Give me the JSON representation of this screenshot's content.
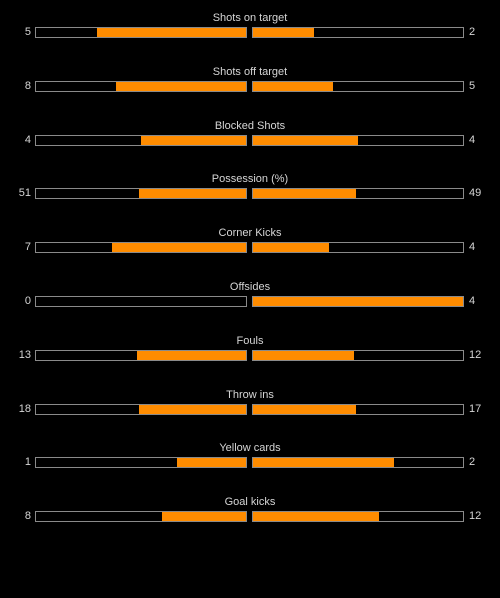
{
  "colors": {
    "background": "#000000",
    "text": "#d6d6d6",
    "bar_border": "#8a8a8a",
    "bar_fill": "#ff8c00"
  },
  "stats": [
    {
      "label": "Shots on target",
      "left": "5",
      "right": "2",
      "left_fill": 0.71,
      "right_fill": 0.29
    },
    {
      "label": "Shots off target",
      "left": "8",
      "right": "5",
      "left_fill": 0.62,
      "right_fill": 0.38
    },
    {
      "label": "Blocked Shots",
      "left": "4",
      "right": "4",
      "left_fill": 0.5,
      "right_fill": 0.5
    },
    {
      "label": "Possession (%)",
      "left": "51",
      "right": "49",
      "left_fill": 0.51,
      "right_fill": 0.49
    },
    {
      "label": "Corner Kicks",
      "left": "7",
      "right": "4",
      "left_fill": 0.64,
      "right_fill": 0.36
    },
    {
      "label": "Offsides",
      "left": "0",
      "right": "4",
      "left_fill": 0.0,
      "right_fill": 1.0
    },
    {
      "label": "Fouls",
      "left": "13",
      "right": "12",
      "left_fill": 0.52,
      "right_fill": 0.48
    },
    {
      "label": "Throw ins",
      "left": "18",
      "right": "17",
      "left_fill": 0.51,
      "right_fill": 0.49
    },
    {
      "label": "Yellow cards",
      "left": "1",
      "right": "2",
      "left_fill": 0.33,
      "right_fill": 0.67
    },
    {
      "label": "Goal kicks",
      "left": "8",
      "right": "12",
      "left_fill": 0.4,
      "right_fill": 0.6
    }
  ]
}
